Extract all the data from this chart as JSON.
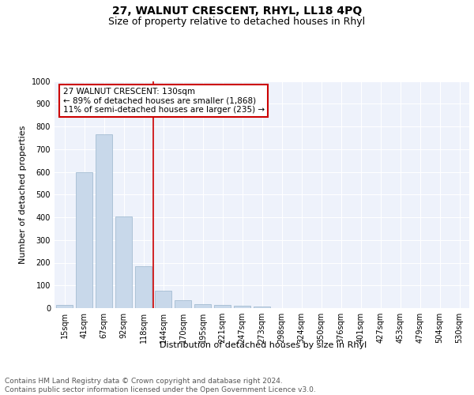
{
  "title": "27, WALNUT CRESCENT, RHYL, LL18 4PQ",
  "subtitle": "Size of property relative to detached houses in Rhyl",
  "xlabel": "Distribution of detached houses by size in Rhyl",
  "ylabel": "Number of detached properties",
  "categories": [
    "15sqm",
    "41sqm",
    "67sqm",
    "92sqm",
    "118sqm",
    "144sqm",
    "170sqm",
    "195sqm",
    "221sqm",
    "247sqm",
    "273sqm",
    "298sqm",
    "324sqm",
    "350sqm",
    "376sqm",
    "401sqm",
    "427sqm",
    "453sqm",
    "479sqm",
    "504sqm",
    "530sqm"
  ],
  "values": [
    15,
    600,
    765,
    403,
    185,
    78,
    35,
    18,
    15,
    12,
    8,
    0,
    0,
    0,
    0,
    0,
    0,
    0,
    0,
    0,
    0
  ],
  "bar_color": "#c8d8ea",
  "bar_edge_color": "#9ab5cc",
  "vline_x": 4.5,
  "vline_color": "#cc0000",
  "annotation_text": "27 WALNUT CRESCENT: 130sqm\n← 89% of detached houses are smaller (1,868)\n11% of semi-detached houses are larger (235) →",
  "annotation_box_facecolor": "#ffffff",
  "annotation_box_edgecolor": "#cc0000",
  "ylim": [
    0,
    1000
  ],
  "yticks": [
    0,
    100,
    200,
    300,
    400,
    500,
    600,
    700,
    800,
    900,
    1000
  ],
  "footer_text": "Contains HM Land Registry data © Crown copyright and database right 2024.\nContains public sector information licensed under the Open Government Licence v3.0.",
  "background_color": "#eef2fb",
  "grid_color": "#ffffff",
  "title_fontsize": 10,
  "subtitle_fontsize": 9,
  "axis_label_fontsize": 8,
  "tick_fontsize": 7,
  "annotation_fontsize": 7.5,
  "footer_fontsize": 6.5
}
